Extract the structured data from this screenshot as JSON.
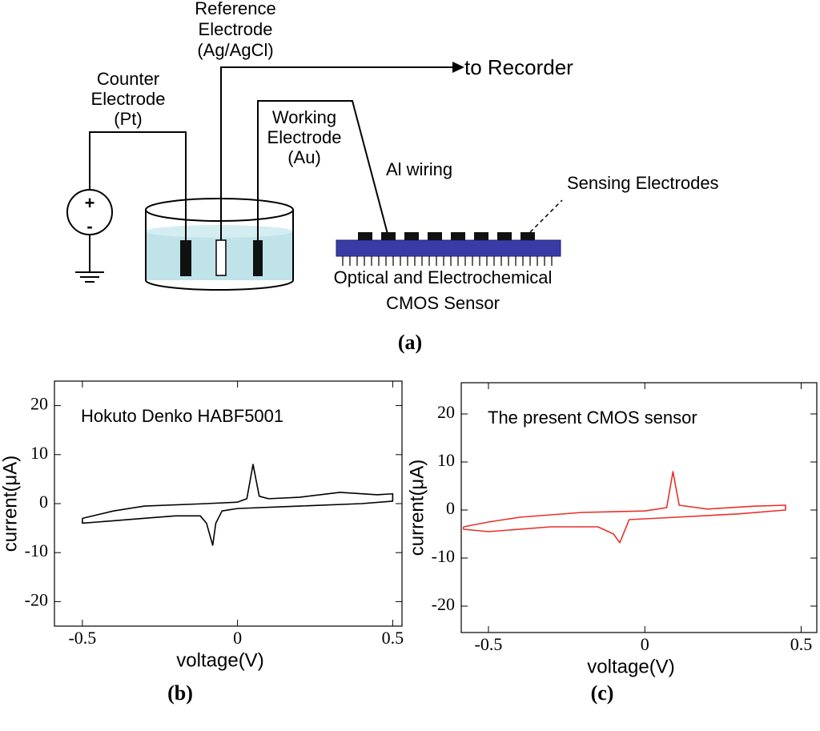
{
  "diagram": {
    "reference_electrode": [
      "Reference",
      "Electrode",
      "(Ag/AgCl)"
    ],
    "recorder": "to Recorder",
    "counter_electrode": [
      "Counter",
      "Electrode",
      "(Pt)"
    ],
    "working_electrode": [
      "Working",
      "Electrode",
      "(Au)"
    ],
    "wiring": "Al wiring",
    "sensing": "Sensing Electrodes",
    "sensor": [
      "Optical and Electrochemical",
      "CMOS Sensor"
    ],
    "plus": "+",
    "minus": "-",
    "panel_label": "(a)"
  },
  "chart_data": [
    {
      "type": "line",
      "panel_label": "(b)",
      "annotation": "Hokuto Denko HABF5001",
      "xlabel": "voltage(V)",
      "ylabel": "current(μA)",
      "color": "#000000",
      "x": [
        -0.5,
        -0.4,
        -0.3,
        -0.1,
        0,
        0.03,
        0.05,
        0.07,
        0.1,
        0.2,
        0.33,
        0.45,
        0.5,
        0.5,
        0.4,
        0.2,
        0,
        -0.05,
        -0.07,
        -0.08,
        -0.1,
        -0.12,
        -0.2,
        -0.3,
        -0.4,
        -0.5,
        -0.5
      ],
      "values": [
        -3,
        -1.5,
        -0.5,
        0,
        0.3,
        1,
        8,
        1.5,
        1,
        1.3,
        2.3,
        1.8,
        2,
        0.5,
        0,
        -0.5,
        -1,
        -1.5,
        -4,
        -8.5,
        -4,
        -2.5,
        -2.5,
        -3,
        -3.5,
        -4,
        -3
      ],
      "xlim": [
        -0.59,
        0.53
      ],
      "ylim": [
        -25,
        25
      ],
      "xticks": [
        -0.5,
        0,
        0.5
      ],
      "yticks": [
        -20,
        -10,
        0,
        10,
        20
      ]
    },
    {
      "type": "line",
      "panel_label": "(c)",
      "annotation": "The present CMOS sensor",
      "xlabel": "voltage(V)",
      "ylabel": "current(μA)",
      "color": "#e8302a",
      "x": [
        -0.58,
        -0.5,
        -0.4,
        -0.2,
        0,
        0.07,
        0.09,
        0.11,
        0.2,
        0.35,
        0.45,
        0.45,
        0.3,
        0.1,
        -0.05,
        -0.08,
        -0.1,
        -0.15,
        -0.3,
        -0.5,
        -0.58,
        -0.58
      ],
      "values": [
        -3.5,
        -2.5,
        -1.5,
        -0.5,
        -0.2,
        0.5,
        8,
        1,
        0.2,
        0.8,
        1,
        0,
        -0.8,
        -1.5,
        -2,
        -6.8,
        -5,
        -3.5,
        -3.5,
        -4.5,
        -4,
        -3.5
      ],
      "xlim": [
        -0.587,
        0.55
      ],
      "ylim": [
        -25.5,
        26.5
      ],
      "xticks": [
        -0.5,
        0,
        0.5
      ],
      "yticks": [
        -20,
        -10,
        0,
        10,
        20
      ]
    }
  ]
}
